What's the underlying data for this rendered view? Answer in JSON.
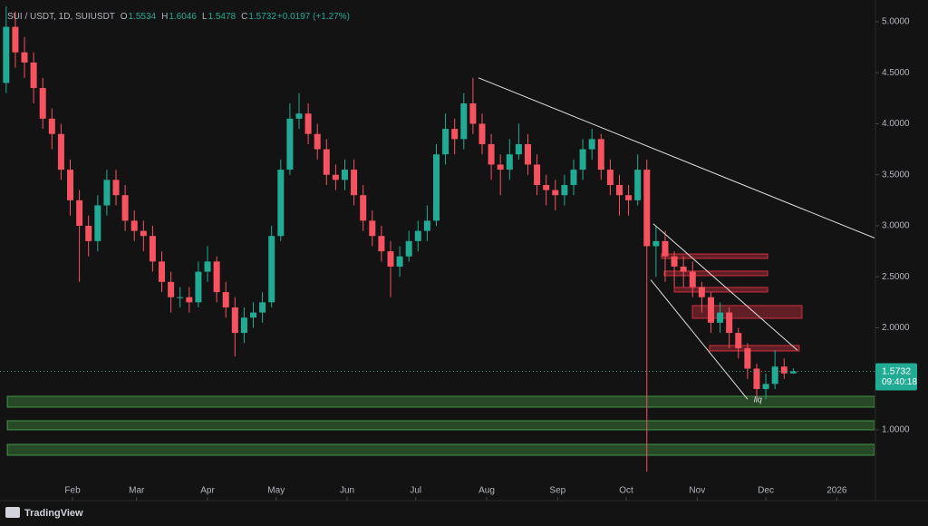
{
  "chart_data": {
    "type": "candlestick",
    "header": [
      {
        "text": "SUI / USDT, 1D, SUIUSDT",
        "color": "#b2b5be"
      },
      {
        "text": "O",
        "color": "#b2b5be"
      },
      {
        "text": "1.5534",
        "color": "#22ab94"
      },
      {
        "text": "H",
        "color": "#b2b5be"
      },
      {
        "text": "1.6046",
        "color": "#22ab94"
      },
      {
        "text": "L",
        "color": "#b2b5be"
      },
      {
        "text": "1.5478",
        "color": "#22ab94"
      },
      {
        "text": "C",
        "color": "#b2b5be"
      },
      {
        "text": "1.5732",
        "color": "#22ab94"
      },
      {
        "text": "+0.0197 (+1.27%)",
        "color": "#22ab94"
      }
    ],
    "up_color": "#22ab94",
    "down_color": "#f7525f",
    "x": [
      2,
      6,
      10,
      14,
      18,
      22,
      26,
      30,
      34,
      38,
      42,
      46,
      50,
      54,
      58,
      62,
      66,
      70,
      74,
      78,
      82,
      86,
      90,
      94,
      98,
      102,
      106,
      110,
      114,
      118,
      122,
      126,
      130,
      134,
      138,
      142,
      146,
      150,
      154,
      158,
      162,
      166,
      170,
      174,
      178,
      182,
      186,
      190,
      194,
      198,
      202,
      206,
      210,
      214,
      218,
      222,
      226,
      230,
      234,
      238,
      242,
      246,
      250,
      254,
      258,
      262,
      266,
      270,
      274,
      278,
      282,
      286,
      290,
      294,
      298,
      302,
      306,
      310,
      314,
      318,
      322,
      326,
      330,
      334,
      338,
      342,
      346
    ],
    "open": [
      4.4,
      4.95,
      4.7,
      4.6,
      4.35,
      4.05,
      3.9,
      3.55,
      3.25,
      3.0,
      2.85,
      3.2,
      3.45,
      3.3,
      3.05,
      2.95,
      2.9,
      2.65,
      2.45,
      2.3,
      2.3,
      2.25,
      2.55,
      2.65,
      2.35,
      2.2,
      1.95,
      2.1,
      2.15,
      2.25,
      2.9,
      3.55,
      4.05,
      4.1,
      3.9,
      3.75,
      3.5,
      3.45,
      3.55,
      3.3,
      3.05,
      2.9,
      2.75,
      2.6,
      2.7,
      2.85,
      2.95,
      3.05,
      3.7,
      3.95,
      3.85,
      4.2,
      4.0,
      3.8,
      3.6,
      3.55,
      3.7,
      3.8,
      3.6,
      3.4,
      3.35,
      3.3,
      3.4,
      3.55,
      3.75,
      3.85,
      3.55,
      3.4,
      3.3,
      3.25,
      3.55,
      2.8,
      2.85,
      2.7,
      2.6,
      2.55,
      2.4,
      2.3,
      2.05,
      2.15,
      1.95,
      1.8,
      1.6,
      1.4,
      1.45,
      1.62,
      1.5534
    ],
    "high": [
      5.15,
      5.1,
      4.85,
      4.7,
      4.45,
      4.15,
      4.0,
      3.65,
      3.35,
      3.1,
      3.3,
      3.55,
      3.55,
      3.4,
      3.15,
      3.05,
      3.0,
      2.75,
      2.55,
      2.4,
      2.4,
      2.65,
      2.8,
      2.7,
      2.45,
      2.3,
      2.2,
      2.25,
      2.35,
      3.0,
      3.65,
      4.2,
      4.3,
      4.2,
      4.0,
      3.85,
      3.6,
      3.65,
      3.65,
      3.4,
      3.15,
      3.0,
      2.85,
      2.8,
      2.95,
      3.05,
      3.2,
      3.8,
      4.1,
      4.05,
      4.3,
      4.45,
      4.1,
      3.9,
      3.7,
      3.85,
      4.0,
      3.9,
      3.7,
      3.5,
      3.45,
      3.5,
      3.65,
      3.85,
      3.95,
      3.9,
      3.65,
      3.5,
      3.4,
      3.7,
      3.65,
      3.0,
      2.95,
      2.75,
      2.7,
      2.65,
      2.45,
      2.35,
      2.25,
      2.2,
      2.0,
      1.85,
      1.65,
      1.55,
      1.78,
      1.7,
      1.6046
    ],
    "low": [
      4.3,
      4.55,
      4.45,
      4.2,
      3.95,
      3.75,
      3.45,
      3.1,
      2.45,
      2.7,
      2.75,
      3.1,
      3.2,
      2.95,
      2.85,
      2.75,
      2.55,
      2.35,
      2.15,
      2.2,
      2.15,
      2.2,
      2.45,
      2.25,
      2.1,
      1.72,
      1.85,
      2.0,
      2.05,
      2.2,
      2.85,
      3.5,
      3.95,
      3.8,
      3.65,
      3.4,
      3.35,
      3.35,
      3.2,
      2.95,
      2.8,
      2.65,
      2.3,
      2.5,
      2.65,
      2.75,
      2.85,
      3.0,
      3.6,
      3.7,
      3.75,
      3.9,
      3.7,
      3.45,
      3.3,
      3.45,
      3.65,
      3.5,
      3.3,
      3.2,
      3.15,
      3.2,
      3.3,
      3.45,
      3.65,
      3.45,
      3.3,
      3.1,
      3.1,
      3.2,
      0.59,
      2.5,
      2.45,
      2.4,
      2.4,
      2.3,
      2.15,
      1.95,
      1.95,
      1.8,
      1.7,
      1.5,
      1.3,
      1.3,
      1.4,
      1.5,
      1.5478
    ],
    "close": [
      4.95,
      4.7,
      4.6,
      4.35,
      4.05,
      3.9,
      3.55,
      3.25,
      3.0,
      2.85,
      3.2,
      3.45,
      3.3,
      3.05,
      2.95,
      2.9,
      2.65,
      2.45,
      2.3,
      2.3,
      2.25,
      2.55,
      2.65,
      2.35,
      2.2,
      1.95,
      2.1,
      2.15,
      2.25,
      2.9,
      3.55,
      4.05,
      4.1,
      3.9,
      3.75,
      3.5,
      3.45,
      3.55,
      3.3,
      3.05,
      2.9,
      2.75,
      2.6,
      2.7,
      2.85,
      2.95,
      3.05,
      3.7,
      3.95,
      3.85,
      4.2,
      4.0,
      3.8,
      3.6,
      3.55,
      3.7,
      3.8,
      3.6,
      3.4,
      3.35,
      3.3,
      3.4,
      3.55,
      3.75,
      3.85,
      3.55,
      3.4,
      3.3,
      3.25,
      3.55,
      2.8,
      2.85,
      2.7,
      2.6,
      2.55,
      2.4,
      2.3,
      2.05,
      2.15,
      1.95,
      1.8,
      1.6,
      1.4,
      1.45,
      1.62,
      1.5534,
      1.5732
    ],
    "xlim": [
      -0.7,
      381.5
    ],
    "ylim": [
      0.342,
      5.213
    ],
    "xticks": [
      {
        "value": 31,
        "label": "Feb"
      },
      {
        "value": 59,
        "label": "Mar"
      },
      {
        "value": 90,
        "label": "Apr"
      },
      {
        "value": 120,
        "label": "May"
      },
      {
        "value": 151,
        "label": "Jun"
      },
      {
        "value": 181,
        "label": "Jul"
      },
      {
        "value": 212,
        "label": "Aug"
      },
      {
        "value": 243,
        "label": "Sep"
      },
      {
        "value": 273,
        "label": "Oct"
      },
      {
        "value": 304,
        "label": "Nov"
      },
      {
        "value": 334,
        "label": "Dec"
      },
      {
        "value": 365,
        "label": "2026"
      }
    ],
    "yticks": [
      {
        "value": 1,
        "label": "1.0000"
      },
      {
        "value": 2,
        "label": "2.0000"
      },
      {
        "value": 2.5,
        "label": "2.5000"
      },
      {
        "value": 3,
        "label": "3.0000"
      },
      {
        "value": 3.5,
        "label": "3.5000"
      },
      {
        "value": 4,
        "label": "4.0000"
      },
      {
        "value": 4.5,
        "label": "4.5000"
      },
      {
        "value": 5,
        "label": "5.0000"
      }
    ],
    "zones": [
      {
        "x": [
          2.5,
          381.5
        ],
        "y": [
          1.222,
          1.329
        ],
        "color": "#4caf50"
      },
      {
        "x": [
          2.5,
          381.5
        ],
        "y": [
          1.0,
          1.089
        ],
        "color": "#4caf50"
      },
      {
        "x": [
          2.5,
          381.5
        ],
        "y": [
          0.751,
          0.858
        ],
        "color": "#4caf50"
      },
      {
        "x": [
          288.4,
          334.8
        ],
        "y": [
          2.68,
          2.724
        ],
        "color": "#f23645"
      },
      {
        "x": [
          289.6,
          334.8
        ],
        "y": [
          2.511,
          2.556
        ],
        "color": "#f23645"
      },
      {
        "x": [
          294.0,
          334.8
        ],
        "y": [
          2.351,
          2.396
        ],
        "color": "#f23645"
      },
      {
        "x": [
          301.9,
          349.8
        ],
        "y": [
          2.093,
          2.218
        ],
        "color": "#f23645"
      },
      {
        "x": [
          309.4,
          348.6
        ],
        "y": [
          1.773,
          1.827
        ],
        "color": "#f23645"
      }
    ],
    "trendlines": [
      {
        "from": [
          208.4,
          4.45
        ],
        "to": [
          381.5,
          2.88
        ]
      },
      {
        "from": [
          284.8,
          3.02
        ],
        "to": [
          347.8,
          1.78
        ]
      },
      {
        "from": [
          283.7,
          2.47
        ],
        "to": [
          326.0,
          1.3
        ]
      }
    ],
    "annotations": [
      {
        "text": "liq",
        "x": 330.5,
        "y": 1.29
      }
    ],
    "last_price": 1.5732,
    "countdown": "09:40:18"
  },
  "footer": {
    "brand": "TradingView"
  }
}
